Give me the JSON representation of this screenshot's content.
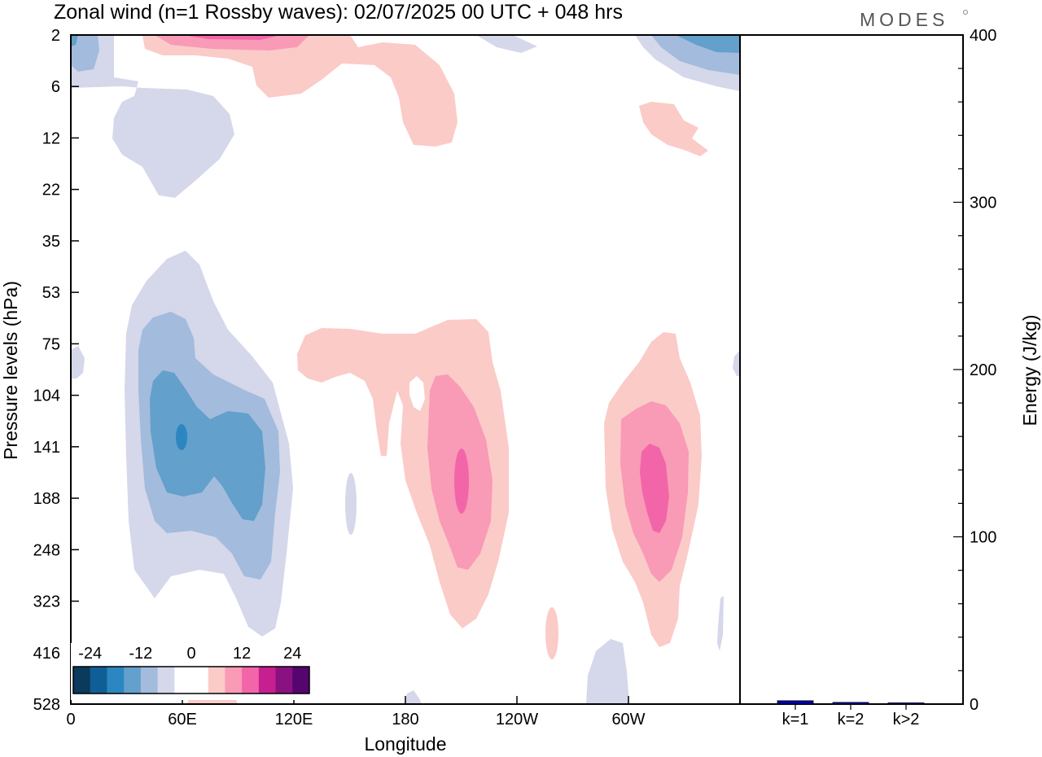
{
  "chart_data": {
    "title": "Zonal wind (n=1 Rossby waves):  02/07/2025  00 UTC  + 048 hrs",
    "logo": "MODES",
    "main": {
      "type": "heatmap",
      "xlabel": "Longitude",
      "ylabel": "Pressure levels (hPa)",
      "x_ticks": [
        "0",
        "60E",
        "120E",
        "180",
        "120W",
        "60W"
      ],
      "x_tick_values": [
        0,
        60,
        120,
        180,
        240,
        300
      ],
      "xlim": [
        0,
        360
      ],
      "y_ticks": [
        "2",
        "6",
        "12",
        "22",
        "35",
        "53",
        "75",
        "104",
        "141",
        "188",
        "248",
        "323",
        "416",
        "528"
      ],
      "ylim": [
        "2",
        "528"
      ],
      "colorbar": {
        "labels": [
          "-24",
          "-12",
          "0",
          "12",
          "24"
        ],
        "label_values": [
          -24,
          -12,
          0,
          12,
          24
        ],
        "colors": [
          "#0b3a5c",
          "#0f5f96",
          "#2c86c1",
          "#63a0cb",
          "#a3bbdc",
          "#d5d7ea",
          "#ffffff",
          "#ffffff",
          "#fbcbc8",
          "#f99ab6",
          "#f265a8",
          "#c61f8f",
          "#8a1180",
          "#56046e"
        ]
      },
      "regions": [
        {
          "sign": "negative",
          "level": -4,
          "lon_range": [
            40,
            120
          ],
          "pressure_range": [
            "35",
            "416"
          ]
        },
        {
          "sign": "negative",
          "level": -8,
          "lon_range": [
            30,
            115
          ],
          "pressure_range": [
            "75",
            "323"
          ]
        },
        {
          "sign": "negative",
          "level": -12,
          "lon_range": [
            35,
            105
          ],
          "pressure_range": [
            "104",
            "248"
          ]
        },
        {
          "sign": "negative",
          "level": -16,
          "lon_range": [
            58,
            62
          ],
          "pressure_range": [
            "120",
            "141"
          ]
        },
        {
          "sign": "negative",
          "level": -4,
          "lon_range": [
            20,
            90
          ],
          "pressure_range": [
            "6",
            "22"
          ]
        },
        {
          "sign": "positive",
          "level": 4,
          "lon_range": [
            120,
            195
          ],
          "pressure_range": [
            "75",
            "141"
          ]
        },
        {
          "sign": "positive",
          "level": 4,
          "lon_range": [
            180,
            235
          ],
          "pressure_range": [
            "104",
            "416"
          ]
        },
        {
          "sign": "positive",
          "level": 8,
          "lon_range": [
            185,
            215
          ],
          "pressure_range": [
            "104",
            "323"
          ]
        },
        {
          "sign": "positive",
          "level": 12,
          "lon_range": [
            200,
            205
          ],
          "pressure_range": [
            "141",
            "188"
          ]
        },
        {
          "sign": "positive",
          "level": 4,
          "lon_range": [
            285,
            340
          ],
          "pressure_range": [
            "75",
            "416"
          ]
        },
        {
          "sign": "positive",
          "level": 8,
          "lon_range": [
            295,
            335
          ],
          "pressure_range": [
            "104",
            "323"
          ]
        },
        {
          "sign": "positive",
          "level": 12,
          "lon_range": [
            305,
            320
          ],
          "pressure_range": [
            "141",
            "248"
          ]
        },
        {
          "sign": "positive",
          "level": 4,
          "lon_range": [
            40,
            210
          ],
          "pressure_range": [
            "2",
            "12"
          ]
        },
        {
          "sign": "negative",
          "level": -8,
          "lon_range": [
            330,
            360
          ],
          "pressure_range": [
            "2",
            "6"
          ]
        }
      ]
    },
    "energy": {
      "type": "bar",
      "ylabel": "Energy (J/kg)",
      "ylim": [
        0,
        400
      ],
      "y_ticks": [
        "0",
        "100",
        "200",
        "300",
        "400"
      ],
      "y_tick_values": [
        0,
        100,
        200,
        300,
        400
      ],
      "categories": [
        "k=1",
        "k=2",
        "k>2"
      ],
      "values": [
        2,
        1,
        0.5
      ],
      "bar_color": "#0000aa"
    }
  }
}
